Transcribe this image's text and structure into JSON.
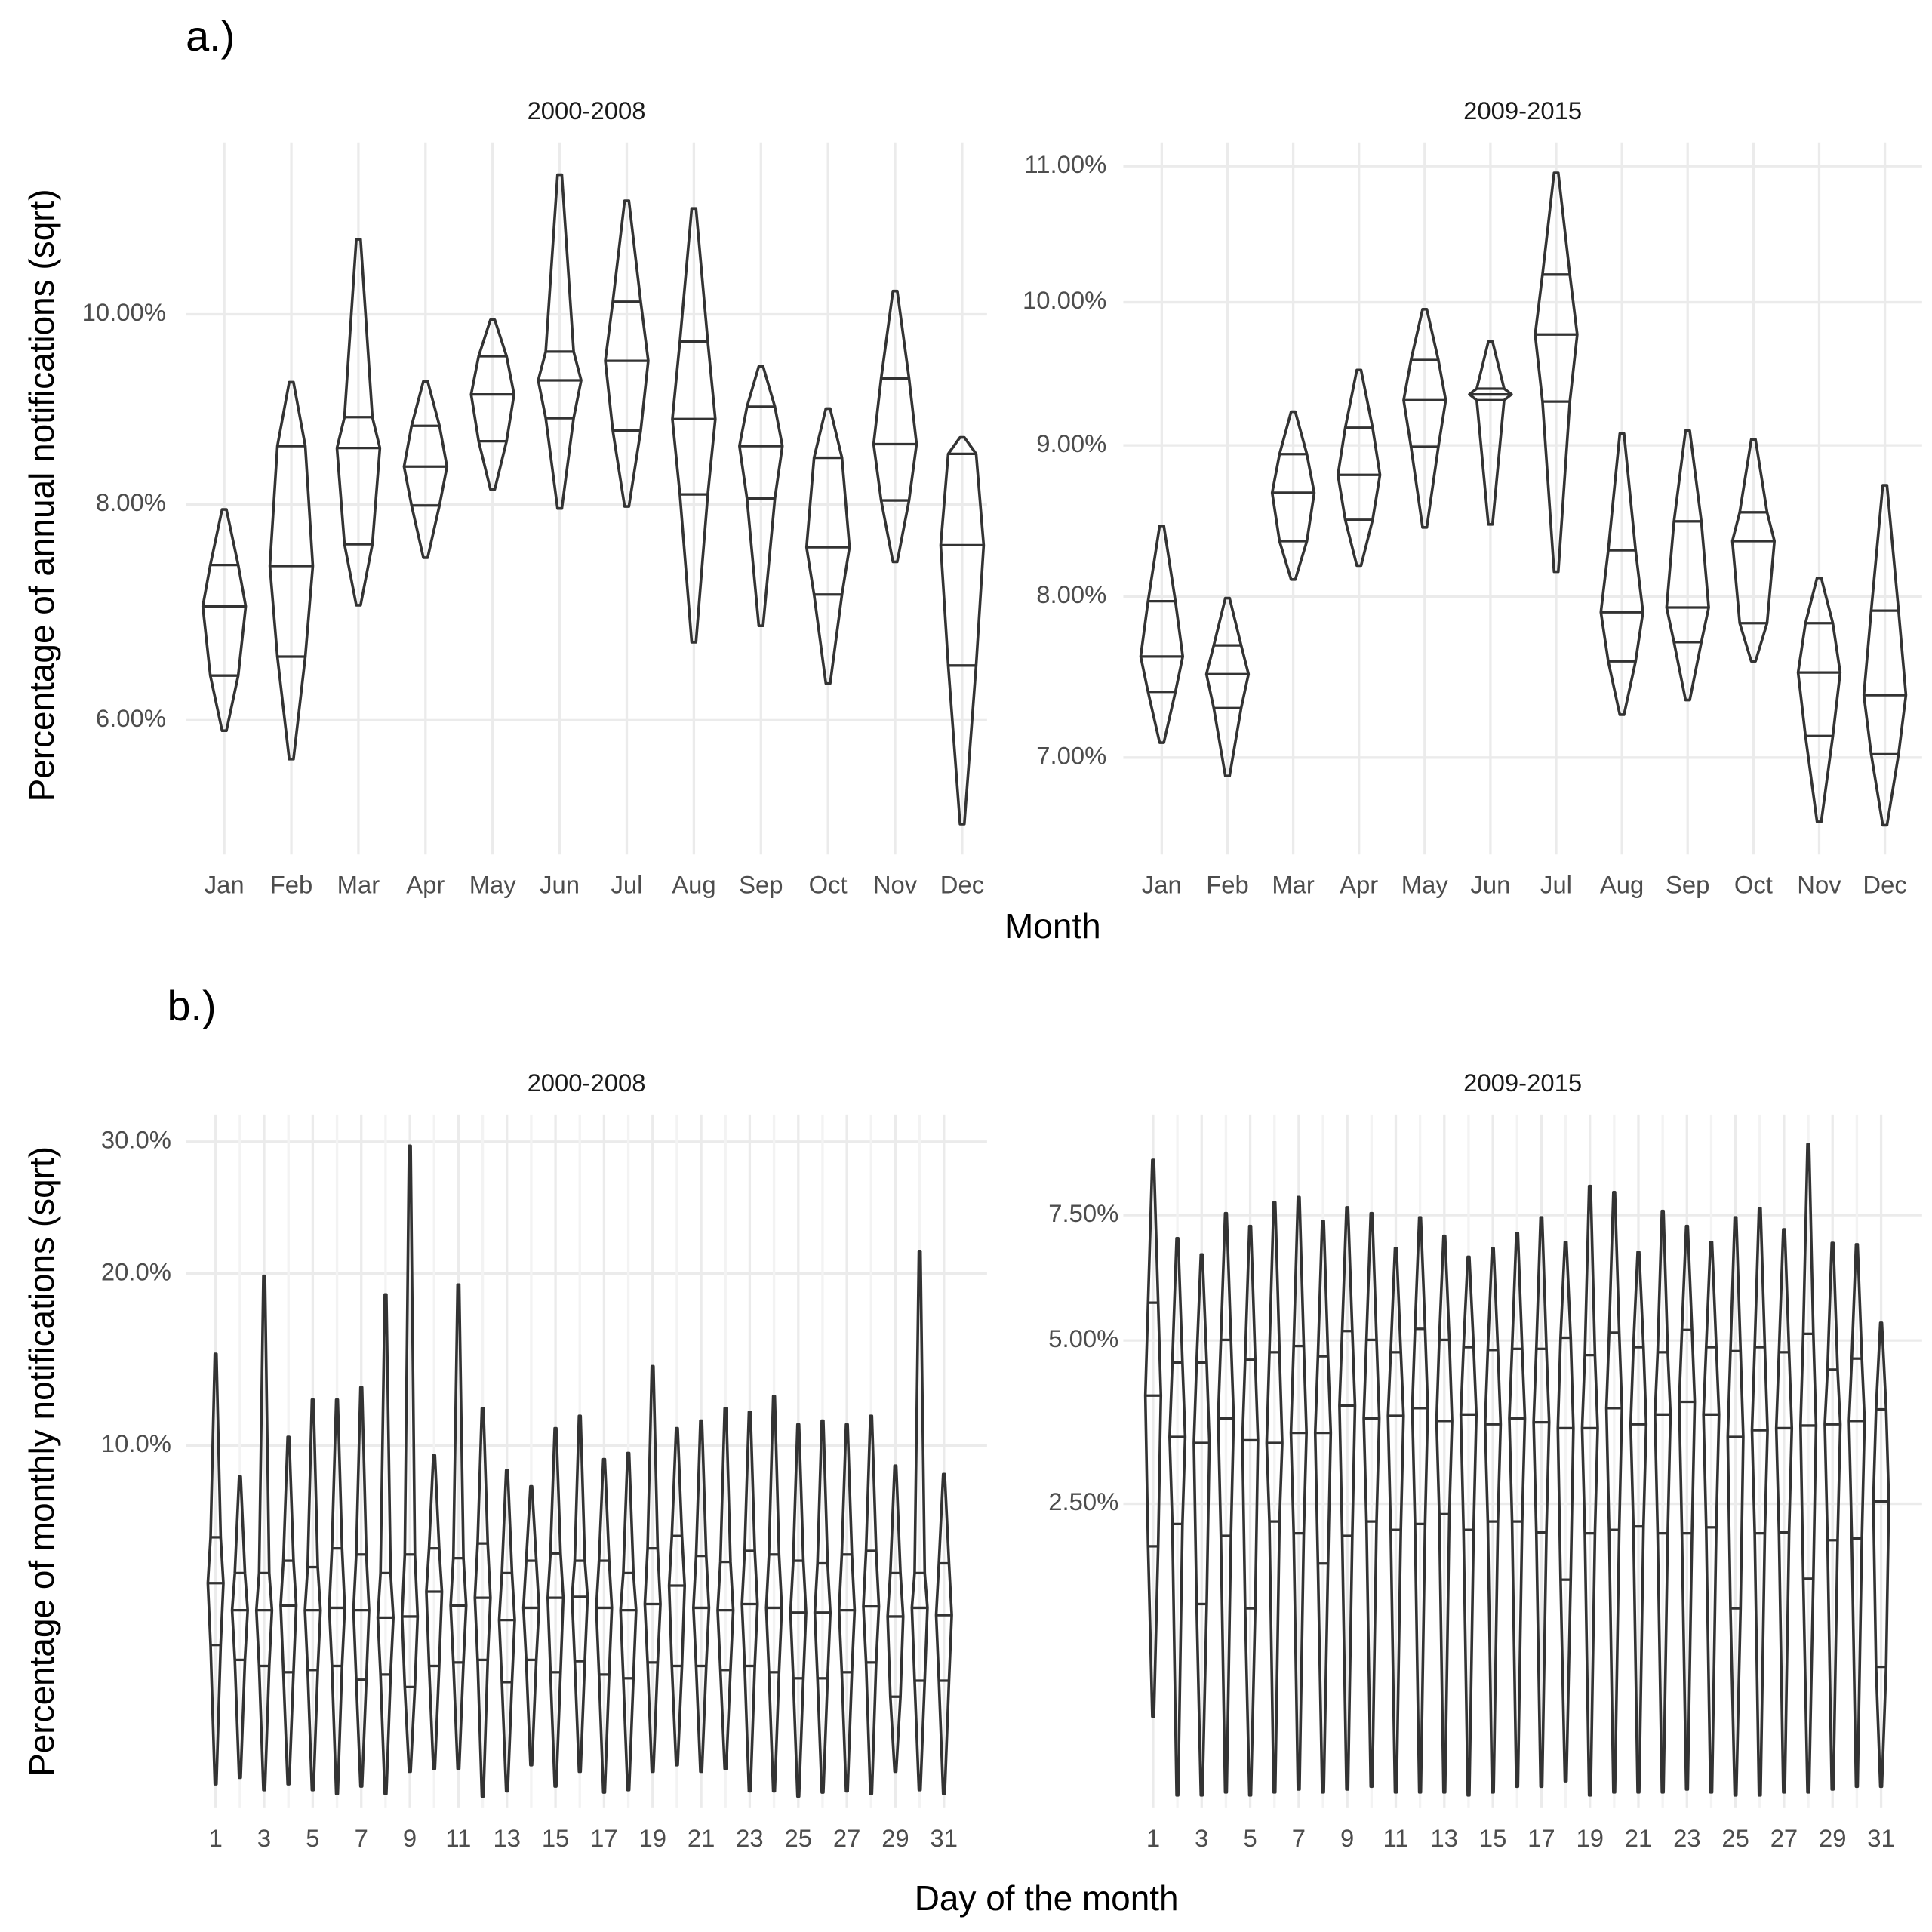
{
  "chart_data": [
    {
      "type": "violin",
      "tag": "a.)",
      "title": "2000-2008",
      "ylabel": "Percentage of annual notifications (sqrt)",
      "categories": [
        "Jan",
        "Feb",
        "Mar",
        "Apr",
        "May",
        "Jun",
        "Jul",
        "Aug",
        "Sep",
        "Oct",
        "Nov",
        "Dec"
      ],
      "max": [
        7.95,
        9.26,
        10.85,
        9.27,
        9.94,
        11.61,
        11.3,
        11.21,
        9.43,
        8.98,
        10.26,
        8.68
      ],
      "q3": [
        7.41,
        8.59,
        8.89,
        8.8,
        9.54,
        9.59,
        10.14,
        9.7,
        9.0,
        8.47,
        9.3,
        8.51
      ],
      "median": [
        7.02,
        7.4,
        8.57,
        8.38,
        9.13,
        9.28,
        9.49,
        8.87,
        8.59,
        7.58,
        8.61,
        7.6
      ],
      "q1": [
        6.39,
        6.56,
        7.61,
        7.99,
        8.64,
        8.88,
        8.75,
        8.1,
        8.06,
        7.13,
        8.04,
        6.48
      ],
      "min": [
        5.91,
        5.67,
        7.03,
        7.48,
        8.15,
        7.96,
        7.98,
        6.69,
        6.84,
        6.32,
        7.44,
        5.14
      ],
      "color": "#333333",
      "yscale": "sqrt",
      "grid": true,
      "ylim": [
        4.9,
        12
      ],
      "yticks": [
        {
          "value": 6,
          "label": "6.00%"
        },
        {
          "value": 8,
          "label": "8.00%"
        },
        {
          "value": 10,
          "label": "10.00%"
        }
      ]
    },
    {
      "type": "violin",
      "title": "2009-2015",
      "xlabel": "Month",
      "categories": [
        "Jan",
        "Feb",
        "Mar",
        "Apr",
        "May",
        "Jun",
        "Jul",
        "Aug",
        "Sep",
        "Oct",
        "Nov",
        "Dec"
      ],
      "max": [
        8.46,
        7.99,
        9.23,
        9.52,
        9.95,
        9.72,
        10.95,
        9.08,
        9.1,
        9.04,
        8.12,
        8.73
      ],
      "q3": [
        7.97,
        7.69,
        8.94,
        9.12,
        9.59,
        9.39,
        10.2,
        8.3,
        8.49,
        8.55,
        7.83,
        7.91
      ],
      "median": [
        7.62,
        7.51,
        8.68,
        8.8,
        9.31,
        9.35,
        9.77,
        7.9,
        7.93,
        8.36,
        7.52,
        7.38
      ],
      "q1": [
        7.4,
        7.3,
        8.36,
        8.5,
        8.99,
        9.31,
        9.3,
        7.59,
        7.71,
        7.83,
        7.13,
        7.02
      ],
      "min": [
        7.09,
        6.89,
        8.11,
        8.2,
        8.45,
        8.47,
        8.16,
        7.26,
        7.35,
        7.59,
        6.62,
        6.6
      ],
      "color": "#333333",
      "yscale": "sqrt",
      "grid": true,
      "ylim": [
        6.43,
        11.18
      ],
      "yticks": [
        {
          "value": 7,
          "label": "7.00%"
        },
        {
          "value": 8,
          "label": "8.00%"
        },
        {
          "value": 9,
          "label": "9.00%"
        },
        {
          "value": 10,
          "label": "10.00%"
        },
        {
          "value": 11,
          "label": "11.00%"
        }
      ]
    },
    {
      "type": "violin",
      "tag": "b.)",
      "title": "2000-2008",
      "ylabel": "Percentage of monthly notifications (sqrt)",
      "categories": [
        1,
        null,
        3,
        null,
        5,
        null,
        7,
        null,
        9,
        null,
        11,
        null,
        13,
        null,
        15,
        null,
        17,
        null,
        19,
        null,
        21,
        null,
        23,
        null,
        25,
        null,
        27,
        null,
        29,
        null,
        31
      ],
      "max": [
        14.9,
        8.56,
        19.84,
        10.42,
        12.33,
        12.33,
        13.0,
        18.6,
        29.65,
        9.53,
        19.25,
        11.87,
        8.84,
        8.13,
        10.85,
        11.48,
        9.35,
        9.64,
        14.18,
        10.85,
        11.23,
        11.87,
        11.68,
        12.52,
        11.04,
        11.23,
        11.04,
        11.48,
        9.05,
        21.56,
        8.67
      ],
      "q3": [
        6.07,
        4.8,
        4.8,
        5.22,
        5.0,
        5.66,
        5.44,
        4.8,
        5.44,
        5.66,
        5.31,
        5.84,
        4.8,
        5.22,
        5.48,
        5.22,
        5.22,
        4.8,
        5.66,
        6.12,
        5.39,
        5.18,
        5.57,
        5.44,
        5.22,
        5.13,
        5.44,
        5.57,
        4.8,
        4.8,
        5.13
      ],
      "median": [
        4.47,
        3.64,
        3.64,
        3.78,
        3.64,
        3.71,
        3.64,
        3.43,
        3.46,
        4.2,
        3.78,
        4.01,
        3.36,
        3.71,
        4.01,
        4.04,
        3.71,
        3.64,
        3.82,
        4.39,
        3.71,
        3.64,
        3.82,
        3.71,
        3.57,
        3.57,
        3.64,
        3.75,
        3.46,
        3.71,
        3.5
      ],
      "q1": [
        2.7,
        2.34,
        2.2,
        2.06,
        2.11,
        2.2,
        1.9,
        2.01,
        1.75,
        2.2,
        2.28,
        2.34,
        1.85,
        2.34,
        2.06,
        2.31,
        2.01,
        1.93,
        2.28,
        2.2,
        2.2,
        2.11,
        2.2,
        2.06,
        1.93,
        1.93,
        2.06,
        2.28,
        1.56,
        1.88,
        1.88
      ],
      "min": [
        0.34,
        0.4,
        0.29,
        0.34,
        0.29,
        0.26,
        0.32,
        0.26,
        0.46,
        0.49,
        0.49,
        0.24,
        0.28,
        0.53,
        0.32,
        0.46,
        0.27,
        0.29,
        0.46,
        0.53,
        0.46,
        0.49,
        0.28,
        0.28,
        0.24,
        0.27,
        0.28,
        0.26,
        0.46,
        0.29,
        0.26
      ],
      "color": "#333333",
      "yscale": "sqrt",
      "grid": true,
      "ylim": [
        0.16,
        32.3
      ],
      "yticks": [
        {
          "value": 10,
          "label": "10.0%"
        },
        {
          "value": 20,
          "label": "20.0%"
        },
        {
          "value": 30,
          "label": "30.0%"
        }
      ]
    },
    {
      "type": "violin",
      "title": "2009-2015",
      "xlabel": "Day of the month",
      "categories": [
        1,
        null,
        3,
        null,
        5,
        null,
        7,
        null,
        9,
        null,
        11,
        null,
        13,
        null,
        15,
        null,
        17,
        null,
        19,
        null,
        21,
        null,
        23,
        null,
        25,
        null,
        27,
        null,
        29,
        null,
        31
      ],
      "max": [
        8.76,
        7.0,
        6.66,
        7.54,
        7.26,
        7.78,
        7.9,
        7.37,
        7.67,
        7.54,
        6.79,
        7.45,
        7.05,
        6.61,
        6.79,
        7.11,
        7.45,
        6.92,
        8.15,
        8.01,
        6.71,
        7.59,
        7.26,
        6.92,
        7.45,
        7.65,
        7.19,
        9.14,
        6.9,
        6.87,
        5.32
      ],
      "q3": [
        5.7,
        4.61,
        4.61,
        5.01,
        4.66,
        4.79,
        4.9,
        4.72,
        5.17,
        5.01,
        4.79,
        5.21,
        5.01,
        4.88,
        4.83,
        4.85,
        4.85,
        5.05,
        4.74,
        5.14,
        4.88,
        4.79,
        5.19,
        4.88,
        4.81,
        4.88,
        4.79,
        5.12,
        4.49,
        4.68,
        3.84
      ],
      "median": [
        4.06,
        3.42,
        3.33,
        3.7,
        3.37,
        3.33,
        3.48,
        3.48,
        3.9,
        3.7,
        3.74,
        3.86,
        3.66,
        3.76,
        3.61,
        3.7,
        3.64,
        3.55,
        3.55,
        3.86,
        3.61,
        3.76,
        3.96,
        3.76,
        3.42,
        3.52,
        3.55,
        3.59,
        3.61,
        3.66,
        2.53
      ],
      "q1": [
        1.99,
        2.25,
        1.39,
        2.11,
        1.35,
        2.28,
        2.14,
        1.8,
        2.11,
        2.28,
        2.18,
        2.25,
        2.37,
        2.18,
        2.28,
        2.28,
        2.15,
        1.63,
        2.14,
        2.18,
        2.22,
        2.14,
        2.14,
        2.21,
        1.35,
        2.14,
        2.15,
        1.64,
        2.06,
        2.08,
        0.86
      ],
      "min": [
        0.53,
        0.17,
        0.17,
        0.18,
        0.17,
        0.18,
        0.19,
        0.18,
        0.19,
        0.2,
        0.18,
        0.18,
        0.18,
        0.17,
        0.18,
        0.2,
        0.2,
        0.22,
        0.17,
        0.18,
        0.18,
        0.18,
        0.19,
        0.18,
        0.17,
        0.17,
        0.18,
        0.18,
        0.19,
        0.2,
        0.2
      ],
      "color": "#333333",
      "yscale": "sqrt",
      "grid": true,
      "ylim": [
        0.13,
        9.87
      ],
      "yticks": [
        {
          "value": 2.5,
          "label": "2.50%"
        },
        {
          "value": 5,
          "label": "5.00%"
        },
        {
          "value": 7.5,
          "label": "7.50%"
        }
      ]
    }
  ]
}
